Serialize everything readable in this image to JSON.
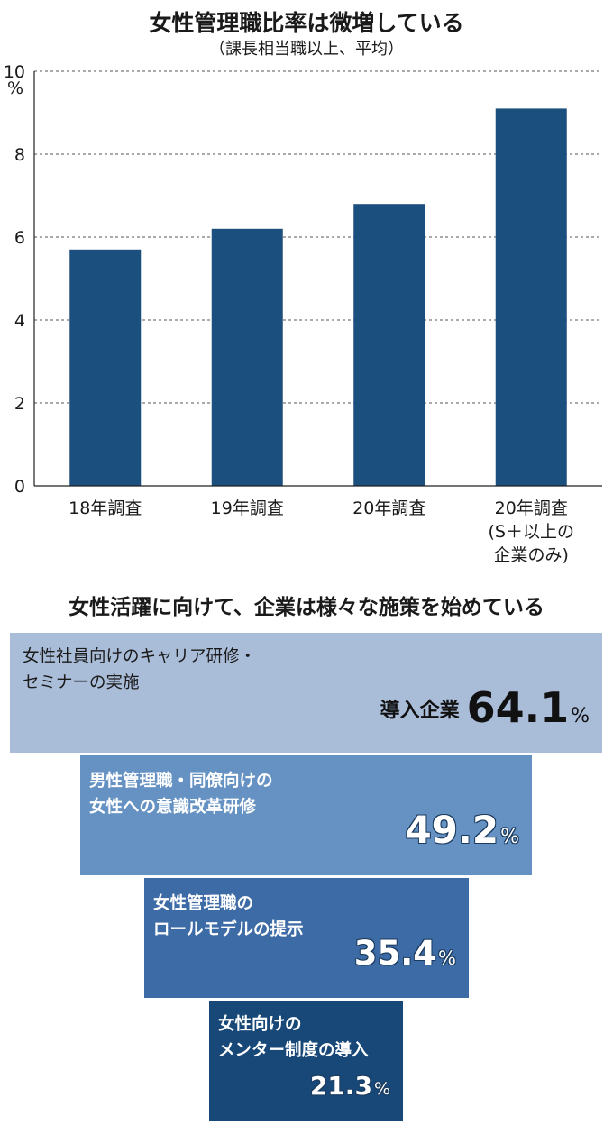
{
  "chart_data": [
    {
      "type": "bar",
      "title": "女性管理職比率は微増している",
      "subtitle": "（課長相当職以上、平均）",
      "ylabel": "%",
      "ylim": [
        0,
        10
      ],
      "yticks": [
        0,
        2,
        4,
        6,
        8,
        10
      ],
      "grid": "dashed horizontal",
      "categories": [
        "18年調査",
        "19年調査",
        "20年調査",
        "20年調査\n(S＋以上の\n企業のみ)"
      ],
      "values": [
        5.7,
        6.2,
        6.8,
        9.1
      ],
      "bar_color": "#1b4f7e"
    },
    {
      "type": "bar",
      "title": "女性活躍に向けて、企業は様々な施策を始めている",
      "value_prefix": "導入企業",
      "unit": "%",
      "items": [
        {
          "label": "女性社員向けのキャリア研修・\nセミナーの実施",
          "value": 64.1,
          "value_text": "64.1",
          "color": "#a9bcd8"
        },
        {
          "label": "男性管理職・同僚向けの\n女性への意識改革研修",
          "value": 49.2,
          "value_text": "49.2",
          "color": "#6592c2"
        },
        {
          "label": "女性管理職の\nロールモデルの提示",
          "value": 35.4,
          "value_text": "35.4",
          "color": "#3d6ba6"
        },
        {
          "label": "女性向けの\nメンター制度の導入",
          "value": 21.3,
          "value_text": "21.3",
          "color": "#174878"
        }
      ]
    }
  ]
}
